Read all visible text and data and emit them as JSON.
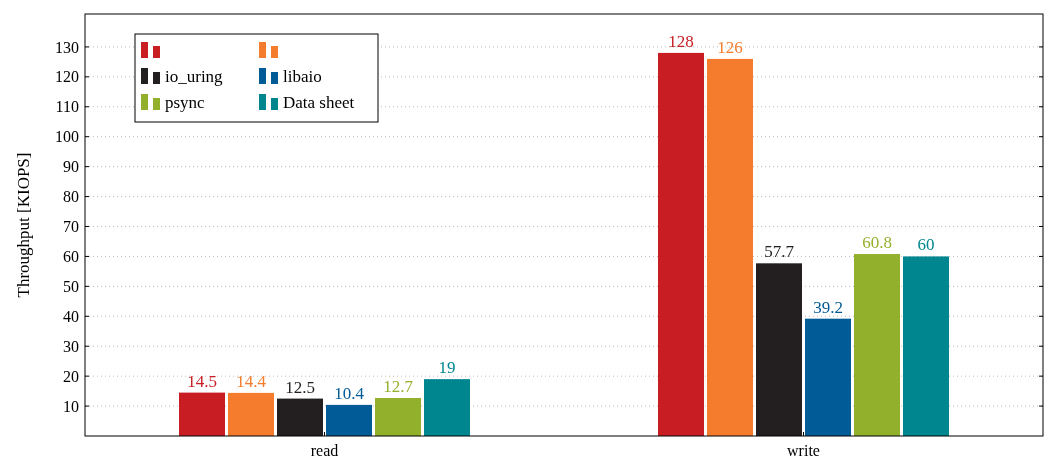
{
  "chart_data": {
    "type": "bar",
    "ylabel": "Throughput [KIOPS]",
    "categories": [
      "read",
      "write"
    ],
    "series": [
      {
        "color": "#c81e23",
        "values": [
          14.5,
          128
        ]
      },
      {
        "color": "#f57c2c",
        "values": [
          14.4,
          126
        ]
      },
      {
        "name": "io_uring",
        "color": "#231f20",
        "values": [
          12.5,
          57.7
        ]
      },
      {
        "name": "libaio",
        "color": "#005b96",
        "values": [
          10.4,
          39.2
        ]
      },
      {
        "name": "psync",
        "color": "#93b02c",
        "values": [
          12.7,
          60.8
        ]
      },
      {
        "name": "Data sheet",
        "color": "#00868f",
        "values": [
          19,
          60
        ]
      }
    ],
    "ylim": [
      0,
      141
    ],
    "yticks": [
      10,
      20,
      30,
      40,
      50,
      60,
      70,
      80,
      90,
      100,
      110,
      120,
      130
    ],
    "grid": "y",
    "legend": "top left",
    "data_labels": true
  }
}
